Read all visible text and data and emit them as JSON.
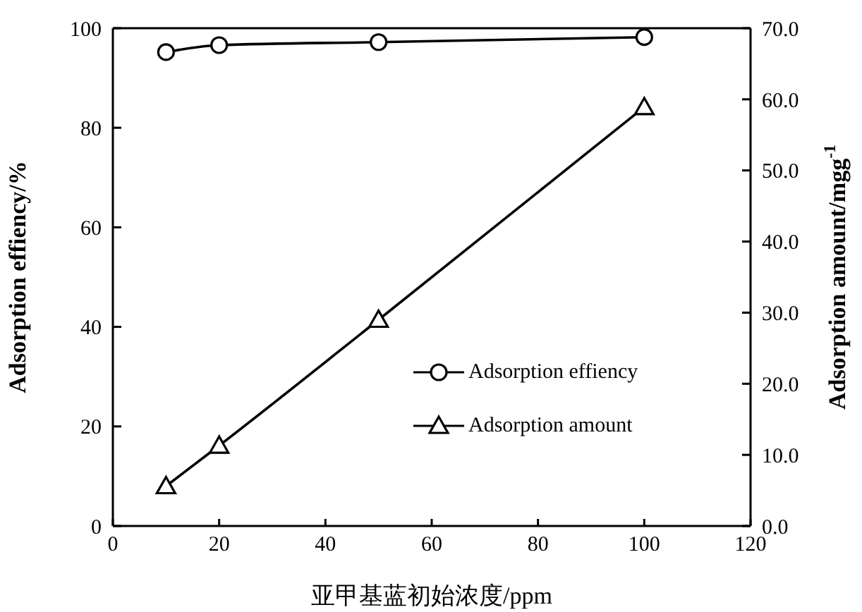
{
  "chart_data": {
    "type": "line",
    "xlabel": "亚甲基蓝初始浓度/ppm",
    "ylabel": "Adsorption effiency/%",
    "y2label": "Adsorption amount/mgg$^{-1}$",
    "x": [
      10,
      20,
      50,
      100
    ],
    "series": [
      {
        "name": "Adsorption effiency",
        "color": "#000000",
        "values": [
          95.2,
          96.6,
          97.2,
          98.2
        ],
        "marker": "circle"
      },
      {
        "name": "Adsorption amount",
        "color": "#000000",
        "values": [
          5.6,
          11.3,
          29.0,
          58.9
        ],
        "marker": "triangle",
        "axis": "y2"
      }
    ],
    "xlim": [
      0,
      120
    ],
    "xticks": [
      0,
      20,
      40,
      60,
      80,
      100,
      120
    ],
    "ylim": [
      0,
      100
    ],
    "yticks": [
      0,
      20,
      40,
      60,
      80,
      100
    ],
    "y2lim": [
      0,
      70
    ],
    "y2ticks": [
      {
        "value": 0,
        "label": "0.0"
      },
      {
        "value": 10,
        "label": "10.0"
      },
      {
        "value": 20,
        "label": "20.0"
      },
      {
        "value": 30,
        "label": "30.0"
      },
      {
        "value": 40,
        "label": "40.0"
      },
      {
        "value": 50,
        "label": "50.0"
      },
      {
        "value": 60,
        "label": "60.0"
      },
      {
        "value": 70,
        "label": "70.0"
      }
    ],
    "legend": "right",
    "grid": false,
    "line_style": "solid"
  }
}
